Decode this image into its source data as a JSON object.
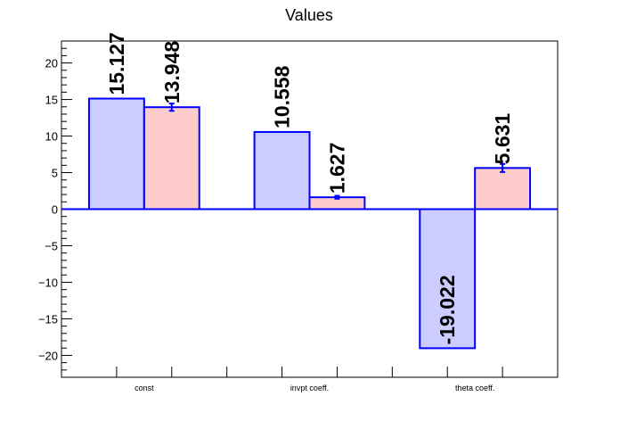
{
  "chart_data": {
    "type": "bar",
    "title": "Values",
    "xlabel": "",
    "ylabel": "",
    "categories": [
      "const",
      "invpt coeff.",
      "theta coeff."
    ],
    "ylim": [
      -23,
      23
    ],
    "yticks": [
      -20,
      -15,
      -10,
      -5,
      0,
      5,
      10,
      15,
      20
    ],
    "ytick_labels": [
      "−20",
      "−15",
      "−10",
      "−5",
      "0",
      "5",
      "10",
      "15",
      "20"
    ],
    "grid": false,
    "series": [
      {
        "values": [
          15.127,
          10.558,
          -19.022
        ],
        "labels": [
          "15.127",
          "10.558",
          "-19.022"
        ],
        "errors": [
          0,
          0,
          0
        ],
        "fill": "#ccccff"
      },
      {
        "values": [
          13.948,
          1.627,
          5.631
        ],
        "labels": [
          "13.948",
          "1.627",
          "5.631"
        ],
        "errors": [
          0.5,
          0.2,
          0.55
        ],
        "fill": "#ffcccc"
      }
    ],
    "bar_stroke": "#0000ff",
    "zero_line_color": "#0000ff"
  }
}
